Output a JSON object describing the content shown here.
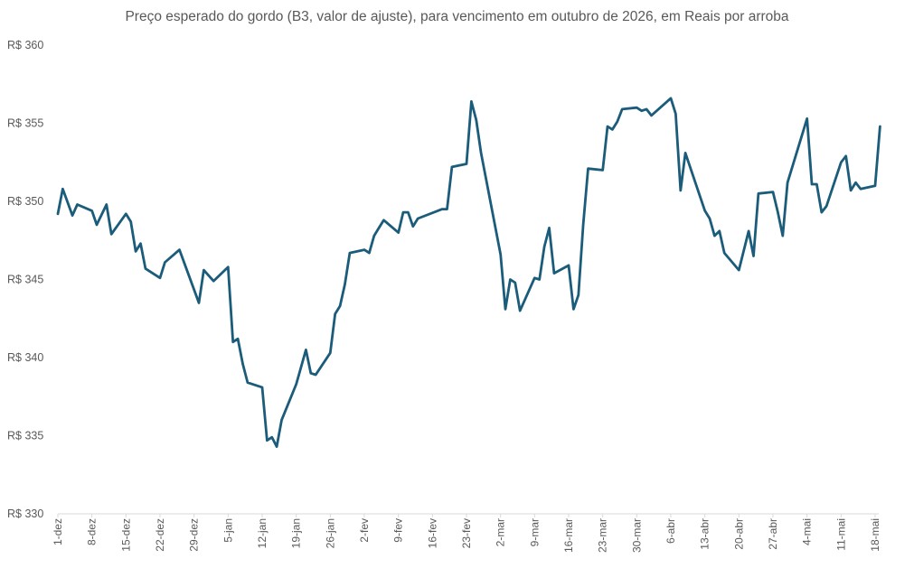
{
  "chart_data": {
    "type": "line",
    "title": "Preço esperado do gordo (B3, valor de ajuste), para vencimento em outubro de 2026, em Reais por arroba",
    "xlabel": "",
    "ylabel": "",
    "ylim": [
      330,
      360
    ],
    "yticks": [
      330,
      335,
      340,
      345,
      350,
      355,
      360
    ],
    "ytick_labels": [
      "R$ 330",
      "R$ 335",
      "R$ 340",
      "R$ 345",
      "R$ 350",
      "R$ 355",
      "R$ 360"
    ],
    "grid": false,
    "legend": "none",
    "line_color": "#1b5c7a",
    "x_axis": {
      "start": "2025-12-01",
      "end": "2026-05-18",
      "tick_dates": [
        "2025-12-01",
        "2025-12-08",
        "2025-12-15",
        "2025-12-22",
        "2025-12-29",
        "2026-01-05",
        "2026-01-12",
        "2026-01-19",
        "2026-01-26",
        "2026-02-02",
        "2026-02-09",
        "2026-02-16",
        "2026-02-23",
        "2026-03-02",
        "2026-03-09",
        "2026-03-16",
        "2026-03-23",
        "2026-03-30",
        "2026-04-06",
        "2026-04-13",
        "2026-04-20",
        "2026-04-27",
        "2026-05-04",
        "2026-05-11",
        "2026-05-18"
      ],
      "tick_labels": [
        "1-dez",
        "8-dez",
        "15-dez",
        "22-dez",
        "29-dez",
        "5-jan",
        "12-jan",
        "19-jan",
        "26-jan",
        "2-fev",
        "9-fev",
        "16-fev",
        "23-fev",
        "2-mar",
        "9-mar",
        "16-mar",
        "23-mar",
        "30-mar",
        "6-abr",
        "13-abr",
        "20-abr",
        "27-abr",
        "4-mai",
        "11-mai",
        "18-mai"
      ]
    },
    "series": [
      {
        "values": [
          [
            "2025-12-01",
            349.2
          ],
          [
            "2025-12-02",
            350.8
          ],
          [
            "2025-12-04",
            349.1
          ],
          [
            "2025-12-05",
            349.8
          ],
          [
            "2025-12-08",
            349.4
          ],
          [
            "2025-12-09",
            348.5
          ],
          [
            "2025-12-11",
            349.8
          ],
          [
            "2025-12-12",
            347.9
          ],
          [
            "2025-12-15",
            349.2
          ],
          [
            "2025-12-16",
            348.7
          ],
          [
            "2025-12-17",
            346.8
          ],
          [
            "2025-12-18",
            347.3
          ],
          [
            "2025-12-19",
            345.7
          ],
          [
            "2025-12-22",
            345.1
          ],
          [
            "2025-12-23",
            346.1
          ],
          [
            "2025-12-26",
            346.9
          ],
          [
            "2025-12-30",
            343.5
          ],
          [
            "2025-12-31",
            345.6
          ],
          [
            "2026-01-02",
            344.9
          ],
          [
            "2026-01-05",
            345.8
          ],
          [
            "2026-01-06",
            341.0
          ],
          [
            "2026-01-07",
            341.2
          ],
          [
            "2026-01-08",
            339.6
          ],
          [
            "2026-01-09",
            338.4
          ],
          [
            "2026-01-12",
            338.1
          ],
          [
            "2026-01-13",
            334.7
          ],
          [
            "2026-01-14",
            334.9
          ],
          [
            "2026-01-15",
            334.3
          ],
          [
            "2026-01-16",
            336.0
          ],
          [
            "2026-01-19",
            338.3
          ],
          [
            "2026-01-21",
            340.5
          ],
          [
            "2026-01-22",
            339.0
          ],
          [
            "2026-01-23",
            338.9
          ],
          [
            "2026-01-26",
            340.3
          ],
          [
            "2026-01-27",
            342.8
          ],
          [
            "2026-01-28",
            343.3
          ],
          [
            "2026-01-29",
            344.7
          ],
          [
            "2026-01-30",
            346.7
          ],
          [
            "2026-02-02",
            346.9
          ],
          [
            "2026-02-03",
            346.7
          ],
          [
            "2026-02-04",
            347.8
          ],
          [
            "2026-02-05",
            348.3
          ],
          [
            "2026-02-06",
            348.8
          ],
          [
            "2026-02-09",
            348.0
          ],
          [
            "2026-02-10",
            349.3
          ],
          [
            "2026-02-11",
            349.3
          ],
          [
            "2026-02-12",
            348.4
          ],
          [
            "2026-02-13",
            348.9
          ],
          [
            "2026-02-18",
            349.5
          ],
          [
            "2026-02-19",
            349.5
          ],
          [
            "2026-02-20",
            352.2
          ],
          [
            "2026-02-23",
            352.4
          ],
          [
            "2026-02-24",
            356.4
          ],
          [
            "2026-02-25",
            355.2
          ],
          [
            "2026-02-26",
            353.1
          ],
          [
            "2026-03-02",
            346.6
          ],
          [
            "2026-03-03",
            343.1
          ],
          [
            "2026-03-04",
            345.0
          ],
          [
            "2026-03-05",
            344.8
          ],
          [
            "2026-03-06",
            343.0
          ],
          [
            "2026-03-09",
            345.1
          ],
          [
            "2026-03-10",
            345.0
          ],
          [
            "2026-03-11",
            347.1
          ],
          [
            "2026-03-12",
            348.3
          ],
          [
            "2026-03-13",
            345.4
          ],
          [
            "2026-03-16",
            345.9
          ],
          [
            "2026-03-17",
            343.1
          ],
          [
            "2026-03-18",
            344.0
          ],
          [
            "2026-03-19",
            348.5
          ],
          [
            "2026-03-20",
            352.1
          ],
          [
            "2026-03-23",
            352.0
          ],
          [
            "2026-03-24",
            354.8
          ],
          [
            "2026-03-25",
            354.6
          ],
          [
            "2026-03-26",
            355.1
          ],
          [
            "2026-03-27",
            355.9
          ],
          [
            "2026-03-30",
            356.0
          ],
          [
            "2026-03-31",
            355.8
          ],
          [
            "2026-04-01",
            355.9
          ],
          [
            "2026-04-02",
            355.5
          ],
          [
            "2026-04-06",
            356.6
          ],
          [
            "2026-04-07",
            355.6
          ],
          [
            "2026-04-08",
            350.7
          ],
          [
            "2026-04-09",
            353.1
          ],
          [
            "2026-04-13",
            349.4
          ],
          [
            "2026-04-14",
            348.9
          ],
          [
            "2026-04-15",
            347.8
          ],
          [
            "2026-04-16",
            348.1
          ],
          [
            "2026-04-17",
            346.7
          ],
          [
            "2026-04-20",
            345.6
          ],
          [
            "2026-04-22",
            348.1
          ],
          [
            "2026-04-23",
            346.5
          ],
          [
            "2026-04-24",
            350.5
          ],
          [
            "2026-04-27",
            350.6
          ],
          [
            "2026-04-28",
            349.3
          ],
          [
            "2026-04-29",
            347.8
          ],
          [
            "2026-04-30",
            351.2
          ],
          [
            "2026-05-04",
            355.3
          ],
          [
            "2026-05-05",
            351.1
          ],
          [
            "2026-05-06",
            351.1
          ],
          [
            "2026-05-07",
            349.3
          ],
          [
            "2026-05-08",
            349.7
          ],
          [
            "2026-05-11",
            352.5
          ],
          [
            "2026-05-12",
            352.9
          ],
          [
            "2026-05-13",
            350.7
          ],
          [
            "2026-05-14",
            351.2
          ],
          [
            "2026-05-15",
            350.8
          ],
          [
            "2026-05-18",
            351.0
          ],
          [
            "2026-05-19",
            354.8
          ]
        ]
      }
    ]
  }
}
